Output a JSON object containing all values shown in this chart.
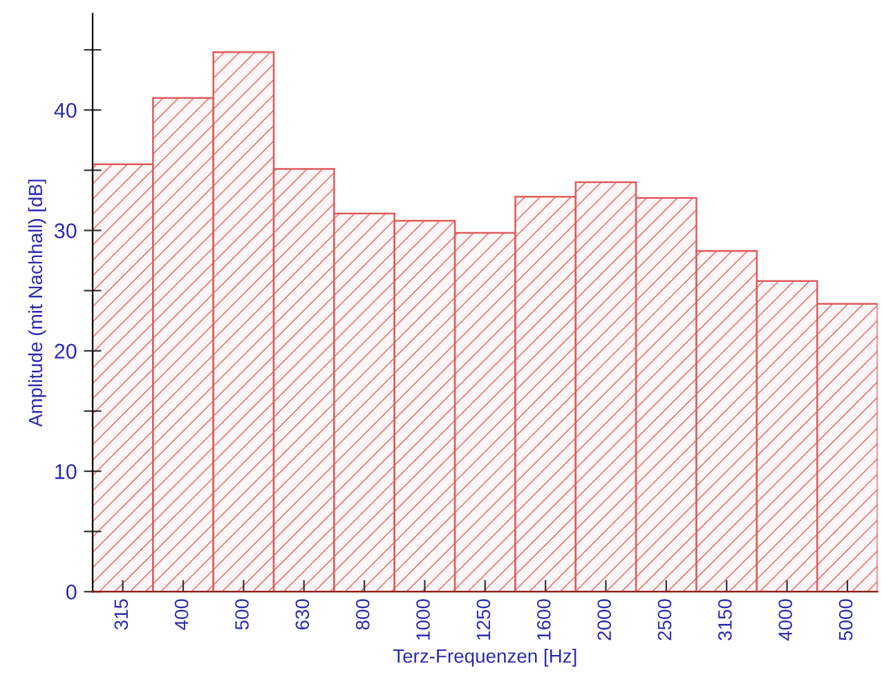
{
  "chart_data": {
    "type": "bar",
    "xlabel": "Terz-Frequenzen [Hz]",
    "ylabel": "Amplitude (mit Nachhall) [dB]",
    "categories": [
      "315",
      "400",
      "500",
      "630",
      "800",
      "1000",
      "1250",
      "1600",
      "2000",
      "2500",
      "3150",
      "4000",
      "5000"
    ],
    "values": [
      35.5,
      41.0,
      44.8,
      35.1,
      31.4,
      30.8,
      29.8,
      32.8,
      34.0,
      32.7,
      28.3,
      25.8,
      23.9
    ],
    "color": "#e05a5a",
    "ylim": [
      0,
      48
    ],
    "yticks": [
      0,
      {
        "value": 5,
        "label": null
      },
      10,
      {
        "value": 15,
        "label": null
      },
      20,
      {
        "value": 25,
        "label": null
      },
      30,
      {
        "value": 35,
        "label": null
      },
      40,
      {
        "value": 45,
        "label": null
      }
    ],
    "grid": false,
    "legend": false
  }
}
